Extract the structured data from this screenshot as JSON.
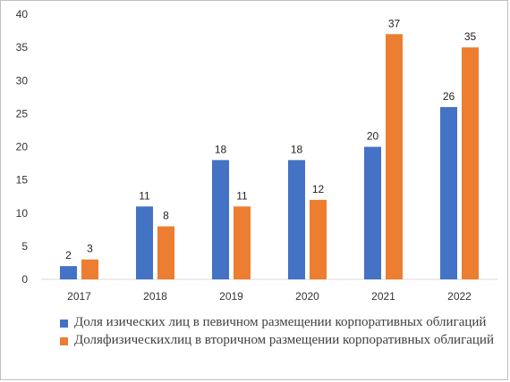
{
  "chart_data": {
    "type": "bar",
    "categories": [
      "2017",
      "2018",
      "2019",
      "2020",
      "2021",
      "2022"
    ],
    "series": [
      {
        "name": "Доля изических лиц в певичном размещении корпоративных облигаций",
        "color": "#4472C4",
        "values": [
          2,
          11,
          18,
          18,
          20,
          26
        ]
      },
      {
        "name": "Доляфизическихлиц в вторичном размещении корпоративных облигаций",
        "color": "#ED7D31",
        "values": [
          3,
          8,
          11,
          12,
          37,
          35
        ]
      }
    ],
    "ylim": [
      0,
      40
    ],
    "yticks": [
      "0",
      "5",
      "10",
      "15",
      "20",
      "25",
      "30",
      "35",
      "40"
    ],
    "grid": false,
    "data_labels": true,
    "legend_position": "bottom-left"
  }
}
